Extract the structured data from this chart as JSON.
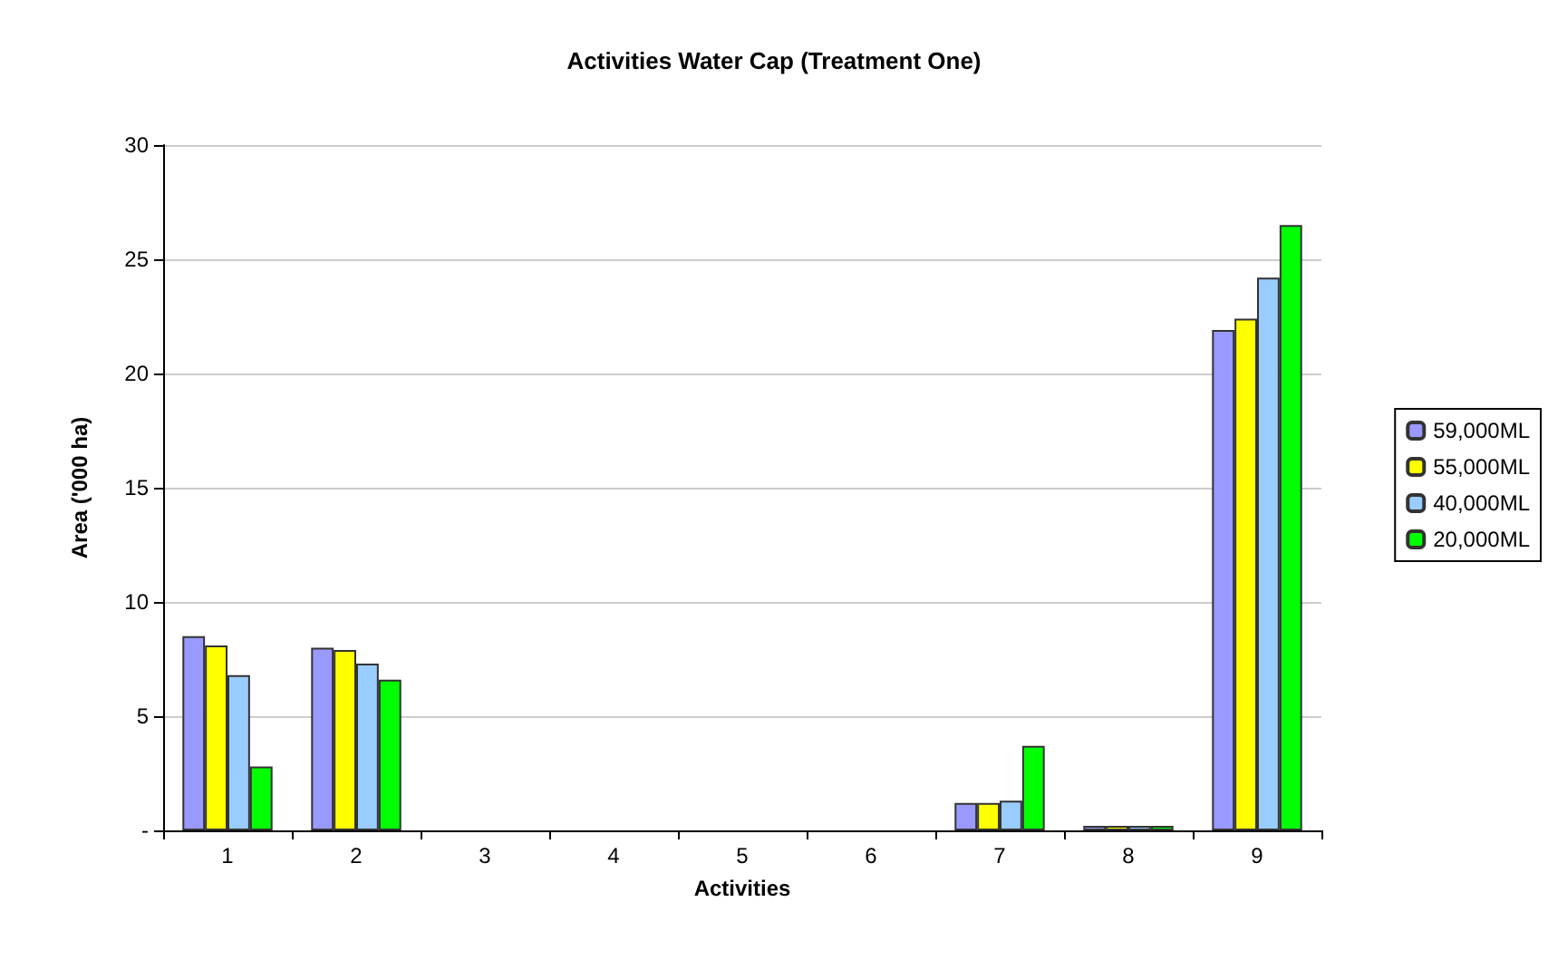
{
  "chart_data": {
    "type": "bar",
    "title": "Activities Water Cap (Treatment One)",
    "xlabel": "Activities",
    "ylabel": "Area ('000 ha)",
    "categories": [
      "1",
      "2",
      "3",
      "4",
      "5",
      "6",
      "7",
      "8",
      "9"
    ],
    "series": [
      {
        "name": "59,000ML",
        "color": "#9999ff",
        "values": [
          8.5,
          8.0,
          0,
          0,
          0,
          0,
          1.2,
          0.2,
          21.9
        ]
      },
      {
        "name": "55,000ML",
        "color": "#ffff00",
        "values": [
          8.1,
          7.9,
          0,
          0,
          0,
          0,
          1.2,
          0.2,
          22.4
        ]
      },
      {
        "name": "40,000ML",
        "color": "#99ccff",
        "values": [
          6.8,
          7.3,
          0,
          0,
          0,
          0,
          1.3,
          0.2,
          24.2
        ]
      },
      {
        "name": "20,000ML",
        "color": "#00ff00",
        "values": [
          2.8,
          6.6,
          0,
          0,
          0,
          0,
          3.7,
          0.2,
          26.5
        ]
      }
    ],
    "ylim": [
      0,
      30
    ],
    "yticks": [
      {
        "value": 0,
        "label": "-"
      },
      5,
      10,
      15,
      20,
      25,
      30
    ],
    "grid": "y",
    "legend": "right"
  }
}
